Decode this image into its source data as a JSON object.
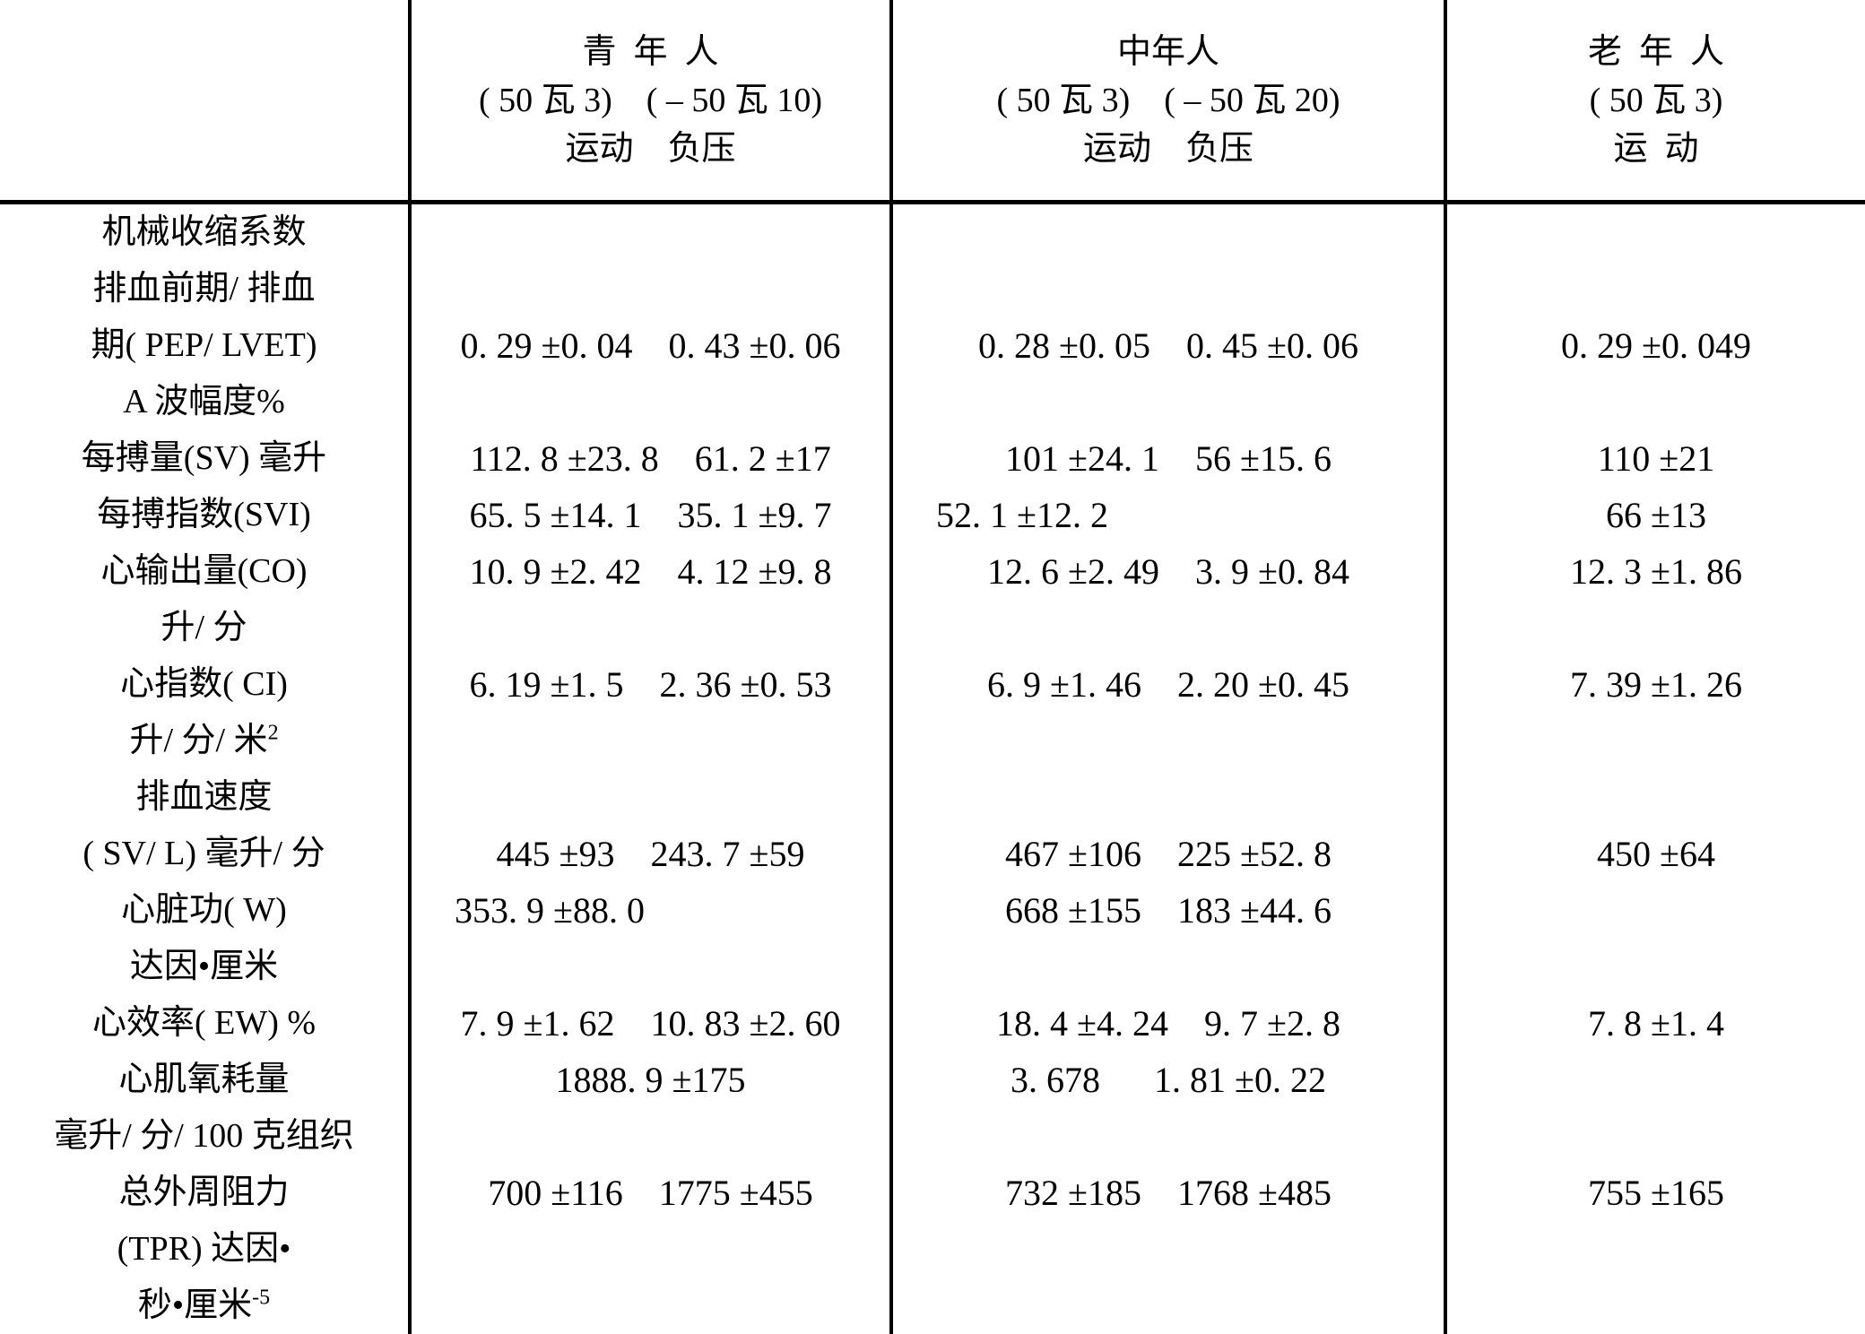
{
  "table": {
    "header": {
      "young": {
        "title": "青  年  人",
        "load": "( 50 瓦 3)    ( – 50 瓦 10)",
        "conds": "运动    负压"
      },
      "middle": {
        "title": "中年人",
        "load": "( 50 瓦 3)    ( – 50 瓦 20)",
        "conds": "运动    负压"
      },
      "old": {
        "title": "老  年  人",
        "load": "( 50 瓦 3)",
        "conds": "运  动"
      }
    },
    "rows": [
      {
        "label": "机械收缩系数",
        "young": "",
        "middle": "",
        "old": ""
      },
      {
        "label": "排血前期/ 排血",
        "young": "",
        "middle": "",
        "old": ""
      },
      {
        "label": "期( PEP/ LVET)",
        "young": "0. 29 ±0. 04    0. 43 ±0. 06",
        "middle": "0. 28 ±0. 05    0. 45 ±0. 06",
        "old": "0. 29 ±0. 049"
      },
      {
        "label": "A 波幅度%",
        "young": "",
        "middle": "",
        "old": ""
      },
      {
        "label": "每搏量(SV) 毫升",
        "young": "112. 8 ±23. 8    61. 2 ±17",
        "middle": "101 ±24. 1    56 ±15. 6",
        "old": "110 ±21"
      },
      {
        "label": "每搏指数(SVI)",
        "young": "65. 5 ±14. 1    35. 1 ±9. 7",
        "middle": "52. 1 ±12. 2",
        "old": "66 ±13"
      },
      {
        "label": "心输出量(CO)",
        "young": "10. 9 ±2. 42    4. 12 ±9. 8",
        "middle": "12. 6 ±2. 49    3. 9 ±0. 84",
        "old": "12. 3 ±1. 86"
      },
      {
        "label": "升/ 分",
        "young": "",
        "middle": "",
        "old": ""
      },
      {
        "label": "心指数( CI)",
        "young": "6. 19 ±1. 5    2. 36 ±0. 53",
        "middle": "6. 9 ±1. 46    2. 20 ±0. 45",
        "old": "7. 39 ±1. 26"
      },
      {
        "label": "升/ 分/ 米",
        "sup": "2",
        "young": "",
        "middle": "",
        "old": ""
      },
      {
        "label": "排血速度",
        "young": "",
        "middle": "",
        "old": ""
      },
      {
        "label": "( SV/ L) 毫升/ 分",
        "young": "445 ±93    243. 7 ±59",
        "middle": "467 ±106    225 ±52. 8",
        "old": "450 ±64"
      },
      {
        "label": "心脏功( W)",
        "young": "353. 9 ±88. 0",
        "middle": "668 ±155    183 ±44. 6",
        "old": ""
      },
      {
        "label": "达因•厘米",
        "young": "",
        "middle": "",
        "old": ""
      },
      {
        "label": "心效率( EW) %",
        "young": "7. 9 ±1. 62    10. 83 ±2. 60",
        "middle": "18. 4 ±4. 24    9. 7 ±2. 8",
        "old": "7. 8 ±1. 4"
      },
      {
        "label": "心肌氧耗量",
        "young": "1888. 9 ±175",
        "middle": "3. 678      1. 81 ±0. 22",
        "old": ""
      },
      {
        "label": "毫升/ 分/ 100 克组织",
        "young": "",
        "middle": "",
        "old": ""
      },
      {
        "label": "总外周阻力",
        "young": "700 ±116    1775 ±455",
        "middle": "732 ±185    1768 ±485",
        "old": "755 ±165"
      },
      {
        "label": "(TPR) 达因•",
        "young": "",
        "middle": "",
        "old": ""
      },
      {
        "label": "秒•厘米",
        "sup": "-5",
        "young": "",
        "middle": "",
        "old": ""
      }
    ]
  }
}
